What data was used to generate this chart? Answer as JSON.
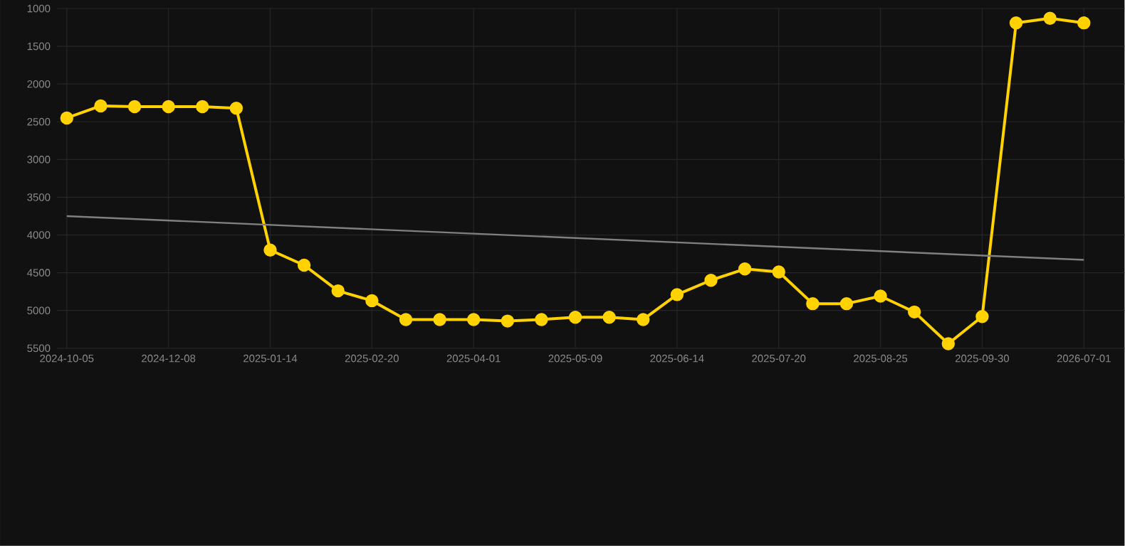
{
  "chart_data": {
    "type": "line",
    "categories": [
      "2024-10-05",
      null,
      null,
      "2024-12-08",
      null,
      null,
      "2025-01-14",
      null,
      null,
      "2025-02-20",
      null,
      null,
      "2025-04-01",
      null,
      null,
      "2025-05-09",
      null,
      null,
      "2025-06-14",
      null,
      null,
      "2025-07-20",
      null,
      null,
      "2025-08-25",
      null,
      null,
      "2025-09-30",
      null,
      null,
      "2026-07-01"
    ],
    "series": [
      {
        "color": "#ffd200",
        "marker": "circle",
        "values": [
          2450,
          2290,
          2300,
          2300,
          2300,
          2320,
          4200,
          4400,
          4740,
          4870,
          5120,
          5120,
          5120,
          5140,
          5120,
          5090,
          5090,
          5120,
          4790,
          4600,
          4450,
          4490,
          4910,
          4910,
          4810,
          5020,
          5440,
          5080,
          1190,
          1130,
          1190
        ]
      },
      {
        "type": "line",
        "color": "#808080",
        "marker": "none",
        "values": [
          3750,
          null,
          null,
          null,
          null,
          null,
          null,
          null,
          null,
          null,
          null,
          null,
          null,
          null,
          null,
          null,
          null,
          null,
          null,
          null,
          null,
          null,
          null,
          null,
          null,
          null,
          null,
          null,
          null,
          null,
          4330
        ]
      }
    ],
    "ylim": [
      5500,
      1000
    ],
    "yticks": [
      1000,
      1500,
      2000,
      2500,
      3000,
      3500,
      4000,
      4500,
      5000,
      5500
    ],
    "grid": true,
    "line_style": "solid"
  }
}
